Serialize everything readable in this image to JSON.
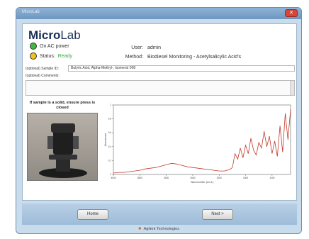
{
  "window": {
    "title": "MicroLab",
    "close_glyph": "✕"
  },
  "header": {
    "logo_bold": "Micro",
    "logo_light": "Lab",
    "power_text": "On AC power",
    "status_label": "Status:",
    "status_value": "Ready",
    "user_label": "User:",
    "user_value": "admin",
    "method_label": "Method:",
    "method_value": "Biodiesel Monitoring - Acetylsalicylic Acid's"
  },
  "fields": {
    "sample_id_label": "(optional) Sample ID:",
    "sample_id_value": "Butyric Acid, Alpha-Methyl-, Isomerol 008",
    "comments_label": "(optional) Comments:"
  },
  "instruction": "If sample is a solid, ensure press is closed",
  "chart_data": {
    "type": "line",
    "title": "",
    "xlabel": "Wavenumber (cm-1)",
    "ylabel": "Absorbance",
    "x": [
      4000,
      3900,
      3800,
      3700,
      3600,
      3500,
      3400,
      3300,
      3200,
      3100,
      3000,
      2900,
      2800,
      2700,
      2600,
      2500,
      2400,
      2300,
      2200,
      2100,
      2000,
      1900,
      1850,
      1800,
      1750,
      1700,
      1650,
      1600,
      1550,
      1500,
      1450,
      1400,
      1350,
      1300,
      1250,
      1200,
      1150,
      1100,
      1050,
      1000,
      950,
      900,
      850,
      800,
      750,
      700,
      650
    ],
    "series": [
      {
        "values": [
          0.02,
          0.03,
          0.03,
          0.04,
          0.05,
          0.06,
          0.08,
          0.09,
          0.1,
          0.12,
          0.14,
          0.16,
          0.15,
          0.13,
          0.11,
          0.1,
          0.09,
          0.08,
          0.07,
          0.06,
          0.05,
          0.05,
          0.06,
          0.07,
          0.1,
          0.3,
          0.22,
          0.38,
          0.24,
          0.42,
          0.3,
          0.52,
          0.35,
          0.28,
          0.46,
          0.38,
          0.62,
          0.4,
          0.55,
          0.3,
          0.48,
          0.26,
          0.7,
          0.32,
          0.88,
          0.5,
          0.94
        ]
      }
    ],
    "xlim": [
      4000,
      650
    ],
    "ylim": [
      0,
      1
    ],
    "xticks": [
      "4000",
      "3500",
      "3000",
      "2500",
      "2000",
      "1500",
      "1000"
    ],
    "yticks": [
      "0",
      "0.2",
      "0.4",
      "0.6",
      "0.8",
      "1"
    ],
    "colors": {
      "line": "#c0392b",
      "axis": "#444444"
    }
  },
  "footer": {
    "home_label": "Home",
    "next_label": "Next >",
    "brand": "Agilent Technologies"
  }
}
